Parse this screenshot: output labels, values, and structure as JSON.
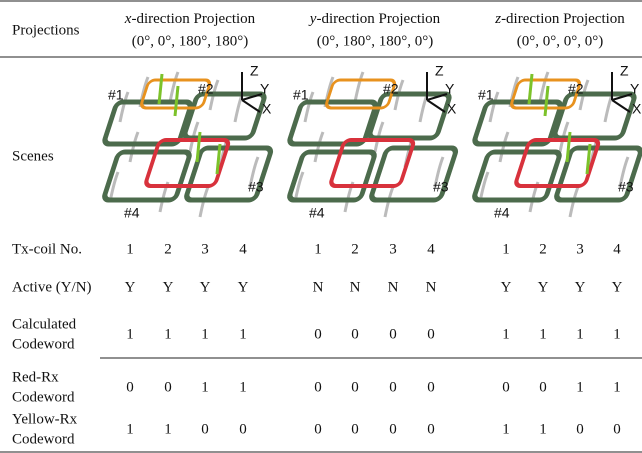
{
  "header": "Projections",
  "projections": [
    {
      "axis": "x",
      "label": "-direction Projection",
      "angles": "(0°, 0°, 180°, 180°)"
    },
    {
      "axis": "y",
      "label": "-direction Projection",
      "angles": "(0°, 180°, 180°, 0°)"
    },
    {
      "axis": "z",
      "label": "-direction Projection",
      "angles": "(0°, 0°, 0°, 0°)"
    }
  ],
  "scenes": {
    "label": "Scenes",
    "coil_labels": [
      "#1",
      "#2",
      "#3",
      "#4"
    ],
    "axis_labels": [
      "Z",
      "Y",
      "X"
    ]
  },
  "rows": [
    {
      "label": [
        "Tx-coil No."
      ],
      "values": [
        [
          1,
          2,
          3,
          4
        ],
        [
          1,
          2,
          3,
          4
        ],
        [
          1,
          2,
          3,
          4
        ]
      ]
    },
    {
      "label": [
        "Active (Y/N)"
      ],
      "values": [
        [
          "Y",
          "Y",
          "Y",
          "Y"
        ],
        [
          "N",
          "N",
          "N",
          "N"
        ],
        [
          "Y",
          "Y",
          "Y",
          "Y"
        ]
      ]
    },
    {
      "label": [
        "Calculated",
        "Codeword"
      ],
      "values": [
        [
          1,
          1,
          1,
          1
        ],
        [
          0,
          0,
          0,
          0
        ],
        [
          1,
          1,
          1,
          1
        ]
      ]
    },
    {
      "label": [
        "Red-Rx",
        "Codeword"
      ],
      "values": [
        [
          0,
          0,
          1,
          1
        ],
        [
          0,
          0,
          0,
          0
        ],
        [
          0,
          0,
          1,
          1
        ]
      ]
    },
    {
      "label": [
        "Yellow-Rx",
        "Codeword"
      ],
      "values": [
        [
          1,
          1,
          0,
          0
        ],
        [
          0,
          0,
          0,
          0
        ],
        [
          1,
          1,
          0,
          0
        ]
      ]
    }
  ]
}
